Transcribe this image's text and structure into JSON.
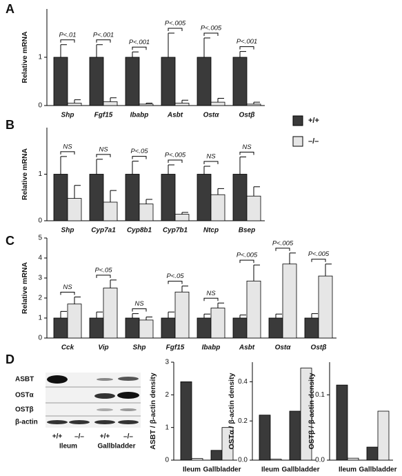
{
  "chart_data": [
    {
      "type": "bar",
      "panel": "A",
      "ylabel": "Relative mRNA",
      "categories": [
        "Shp",
        "Fgf15",
        "Ibabp",
        "Asbt",
        "Ostα",
        "Ostβ"
      ],
      "series": [
        {
          "name": "+/+",
          "color": "#3a3a3a",
          "values": [
            1,
            1,
            1,
            1,
            1,
            1
          ],
          "errors": [
            0.26,
            0.26,
            0.11,
            0.5,
            0.4,
            0.12
          ]
        },
        {
          "name": "–/–",
          "color": "#e6e6e6",
          "values": [
            0.05,
            0.08,
            0.03,
            0.05,
            0.07,
            0.03
          ],
          "errors": [
            0.07,
            0.08,
            0.02,
            0.06,
            0.08,
            0.04
          ]
        }
      ],
      "annotations": [
        "P<.01",
        "P<.001",
        "P<.001",
        "P<.005",
        "P<.005",
        "P<.001"
      ],
      "ylim": [
        0,
        2
      ],
      "yticks": [
        0,
        1
      ]
    },
    {
      "type": "bar",
      "panel": "B",
      "ylabel": "Relative mRNA",
      "categories": [
        "Shp",
        "Cyp7a1",
        "Cyp8b1",
        "Cyp7b1",
        "Ntcp",
        "Bsep"
      ],
      "series": [
        {
          "name": "+/+",
          "color": "#3a3a3a",
          "values": [
            1,
            1,
            1,
            1,
            1,
            1
          ],
          "errors": [
            0.38,
            0.32,
            0.28,
            0.2,
            0.17,
            0.37
          ]
        },
        {
          "name": "–/–",
          "color": "#e6e6e6",
          "values": [
            0.48,
            0.4,
            0.36,
            0.14,
            0.56,
            0.53
          ],
          "errors": [
            0.28,
            0.25,
            0.1,
            0.04,
            0.13,
            0.2
          ]
        }
      ],
      "annotations": [
        "NS",
        "NS",
        "P<.05",
        "P<.005",
        "NS",
        "NS"
      ],
      "ylim": [
        0,
        2
      ],
      "yticks": [
        0,
        1
      ]
    },
    {
      "type": "bar",
      "panel": "C",
      "ylabel": "Relative mRNA",
      "categories": [
        "Cck",
        "Vip",
        "Shp",
        "Fgf15",
        "Ibabp",
        "Asbt",
        "Ostα",
        "Ostβ"
      ],
      "series": [
        {
          "name": "+/+",
          "color": "#3a3a3a",
          "values": [
            1,
            1,
            1,
            1,
            1,
            1,
            1,
            1
          ],
          "errors": [
            0.33,
            0.3,
            0.22,
            0.3,
            0.2,
            0.15,
            0.2,
            0.22
          ]
        },
        {
          "name": "–/–",
          "color": "#e6e6e6",
          "values": [
            1.7,
            2.5,
            0.9,
            2.3,
            1.5,
            2.85,
            3.7,
            3.1
          ],
          "errors": [
            0.35,
            0.4,
            0.15,
            0.3,
            0.25,
            0.8,
            0.55,
            0.6
          ]
        }
      ],
      "annotations": [
        "NS",
        "P<.05",
        "NS",
        "P<.05",
        "NS",
        "P<.005",
        "P<.005",
        "P<.005"
      ],
      "ylim": [
        0,
        5
      ],
      "yticks": [
        0,
        1,
        2,
        3,
        4,
        5
      ]
    },
    {
      "type": "bar",
      "ylabel": "ASBT / β-actin density",
      "categories": [
        "Ileum",
        "Gallbladder"
      ],
      "series": [
        {
          "color": "#3a3a3a",
          "values": [
            2.4,
            0.3
          ]
        },
        {
          "color": "#e6e6e6",
          "values": [
            0.05,
            1.0
          ]
        }
      ],
      "ylim": [
        0,
        3
      ],
      "yticks": [
        0,
        1,
        2,
        3
      ]
    },
    {
      "type": "bar",
      "ylabel": "OSTα / β-actin density",
      "categories": [
        "Ileum",
        "Gallbladder"
      ],
      "series": [
        {
          "color": "#3a3a3a",
          "values": [
            0.23,
            0.25
          ]
        },
        {
          "color": "#e6e6e6",
          "values": [
            0.005,
            0.47
          ]
        }
      ],
      "ylim": [
        0,
        0.5
      ],
      "yticks": [
        {
          "value": 0,
          "label": "0.0"
        },
        0.2,
        0.4
      ]
    },
    {
      "type": "bar",
      "ylabel": "OSTβ / β-actin density",
      "categories": [
        "Ileum",
        "Gallbladder"
      ],
      "series": [
        {
          "color": "#3a3a3a",
          "values": [
            0.115,
            0.02
          ]
        },
        {
          "color": "#e6e6e6",
          "values": [
            0.003,
            0.075
          ]
        }
      ],
      "ylim": [
        0,
        0.15
      ],
      "yticks": [
        {
          "value": 0,
          "label": "0.0"
        },
        0.1
      ]
    }
  ],
  "blot": {
    "panel": "D",
    "proteins": [
      "ASBT",
      "OSTα",
      "OSTβ",
      "β-actin"
    ],
    "lanes": [
      "+/+",
      "–/–",
      "+/+",
      "–/–"
    ],
    "groups": [
      "Ileum",
      "Gallbladder"
    ]
  }
}
